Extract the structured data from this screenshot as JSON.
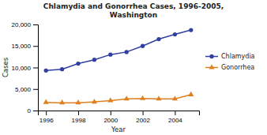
{
  "chart_data": {
    "type": "line",
    "title": "Chlamydia and Gonorrhea Cases, 1996-2005,\nWashington",
    "x_label": "Year",
    "y_label": "Cases",
    "x": [
      1996,
      1997,
      1998,
      1999,
      2000,
      2001,
      2002,
      2003,
      2004,
      2005
    ],
    "series": [
      {
        "name": "Chlamydia",
        "color": "#3040a0",
        "marker": "circle",
        "values": [
          9300,
          9600,
          10900,
          11800,
          13000,
          13600,
          15000,
          16600,
          17700,
          18700
        ]
      },
      {
        "name": "Gonorrhea",
        "color": "#e08020",
        "marker": "triangle",
        "values": [
          1900,
          1800,
          1800,
          2000,
          2300,
          2700,
          2800,
          2700,
          2700,
          3700
        ]
      }
    ],
    "xlim": [
      1995.5,
      2005.5
    ],
    "xticks": [
      1996,
      1998,
      2000,
      2002,
      2004
    ],
    "ylim": [
      0,
      20000
    ],
    "yticks": [
      0,
      {
        "value": 5000,
        "label": "5,000"
      },
      {
        "value": 10000,
        "label": "10,000"
      },
      {
        "value": 15000,
        "label": "15,000"
      },
      {
        "value": 20000,
        "label": "20,000"
      }
    ],
    "grid": false,
    "legend": "right"
  }
}
